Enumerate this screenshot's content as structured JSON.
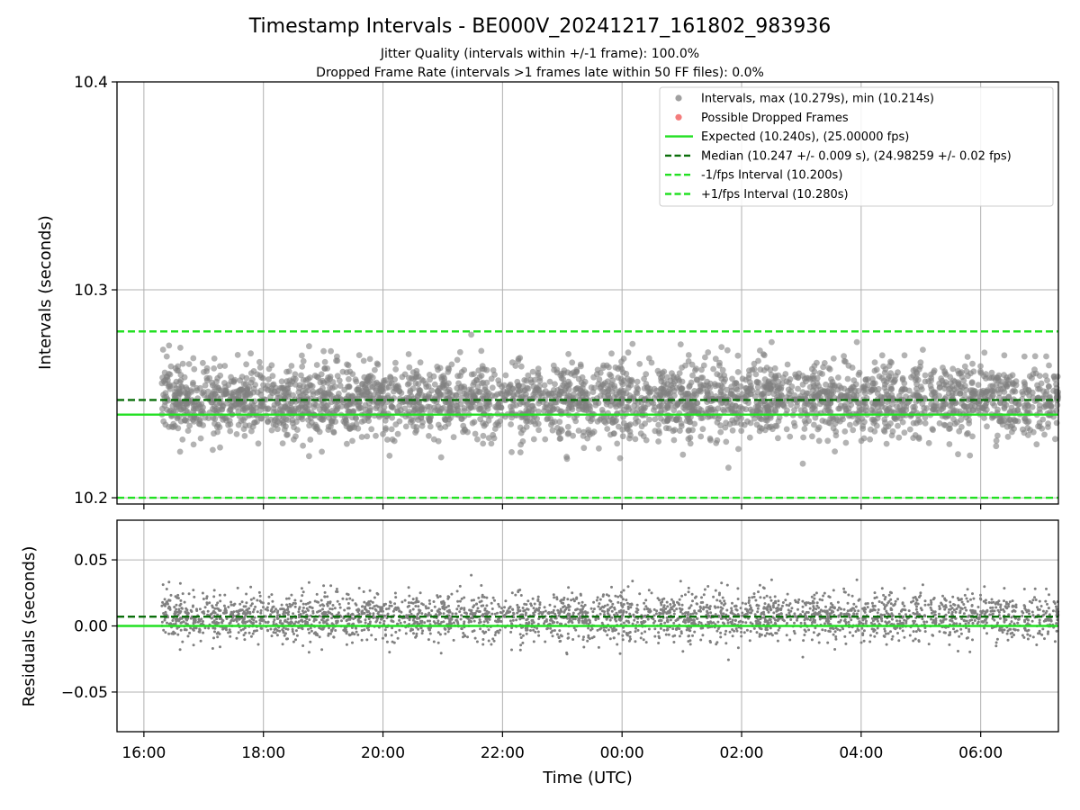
{
  "chart_data": {
    "type": "scatter",
    "title": "Timestamp Intervals - BE000V_20241217_161802_983936",
    "subtitle_lines": [
      "Jitter Quality (intervals within +/-1 frame): 100.0%",
      "Dropped Frame Rate (intervals >1 frames late within 50 FF files): 0.0%"
    ],
    "xlabel": "Time (UTC)",
    "x_ticks": [
      "16:00",
      "18:00",
      "20:00",
      "22:00",
      "00:00",
      "02:00",
      "04:00",
      "06:00"
    ],
    "x_tick_hours": [
      0,
      2,
      4,
      6,
      8,
      10,
      12,
      14
    ],
    "x_range_hours": [
      -0.45,
      15.3
    ],
    "data_start_hour": 0.3,
    "data_end_hour": 15.3,
    "grid": true,
    "legend_position": "top-right",
    "panels": {
      "intervals": {
        "ylabel": "Intervals (seconds)",
        "ylim": [
          10.197,
          10.4
        ],
        "y_ticks": [
          10.2,
          10.3,
          10.4
        ],
        "y_tick_labels": [
          "10.2",
          "10.3",
          "10.4"
        ],
        "scatter_distribution": {
          "center": 10.247,
          "std": 0.009,
          "min": 10.214,
          "max": 10.279,
          "count": 3200
        },
        "series": [
          {
            "name": "Intervals, max (10.279s), min (10.214s)",
            "kind": "scatter",
            "color": "#808080",
            "value": null
          },
          {
            "name": "Possible Dropped Frames",
            "kind": "scatter",
            "color": "#f05050",
            "value": null
          },
          {
            "name": "Expected (10.240s), (25.00000 fps)",
            "kind": "solid",
            "color": "#22e022",
            "value": 10.24
          },
          {
            "name": "Median (10.247 +/- 0.009 s), (24.98259 +/- 0.02 fps)",
            "kind": "dashed",
            "color": "#0a6e0a",
            "value": 10.247
          },
          {
            "name": "-1/fps Interval (10.200s)",
            "kind": "dashed",
            "color": "#22e022",
            "value": 10.2
          },
          {
            "name": "+1/fps Interval (10.280s)",
            "kind": "dashed",
            "color": "#22e022",
            "value": 10.28
          }
        ]
      },
      "residuals": {
        "ylabel": "Residuals (seconds)",
        "ylim": [
          -0.08,
          0.08
        ],
        "y_ticks": [
          -0.05,
          0.0,
          0.05
        ],
        "y_tick_labels": [
          "−0.05",
          "0.00",
          "0.05"
        ],
        "scatter_distribution": {
          "center": 0.007,
          "std": 0.009,
          "min": -0.026,
          "max": 0.039,
          "count": 3200
        },
        "lines": [
          {
            "kind": "solid",
            "color": "#22e022",
            "value": 0.0
          },
          {
            "kind": "dashed",
            "color": "#0a6e0a",
            "value": 0.007
          }
        ]
      }
    }
  }
}
